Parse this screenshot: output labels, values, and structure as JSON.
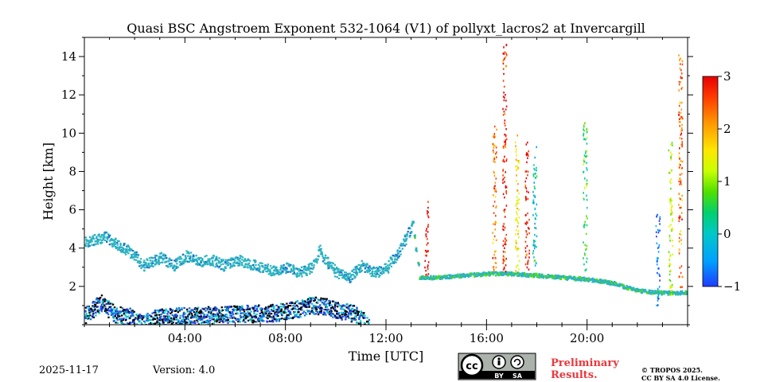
{
  "chart_data": {
    "type": "heatmap",
    "title": "Quasi BSC Angstroem Exponent 532-1064 (V1) of pollyxt_lacros2 at Invercargill",
    "xlabel": "Time [UTC]",
    "ylabel": "Height [km]",
    "xlim_hours": [
      0,
      24
    ],
    "ylim_km": [
      0,
      15
    ],
    "x_ticks": [
      {
        "hour": 4,
        "label": "04:00"
      },
      {
        "hour": 8,
        "label": "08:00"
      },
      {
        "hour": 12,
        "label": "12:00"
      },
      {
        "hour": 16,
        "label": "16:00"
      },
      {
        "hour": 20,
        "label": "20:00"
      }
    ],
    "y_ticks": [
      {
        "km": 2,
        "label": "2"
      },
      {
        "km": 4,
        "label": "4"
      },
      {
        "km": 6,
        "label": "6"
      },
      {
        "km": 8,
        "label": "8"
      },
      {
        "km": 10,
        "label": "10"
      },
      {
        "km": 12,
        "label": "12"
      },
      {
        "km": 14,
        "label": "14"
      }
    ],
    "colorbar": {
      "min": -1,
      "max": 3,
      "ticks": [
        {
          "value": 3,
          "label": "3"
        },
        {
          "value": 2,
          "label": "2"
        },
        {
          "value": 1,
          "label": "1"
        },
        {
          "value": 0,
          "label": "0"
        },
        {
          "value": -1,
          "label": "−1"
        }
      ],
      "colors": [
        "#1e3cff",
        "#00a0ff",
        "#00c8c8",
        "#00d070",
        "#50e000",
        "#c8ff00",
        "#ffe600",
        "#ff9600",
        "#ff3c00",
        "#e60000"
      ]
    },
    "layers": [
      {
        "name": "boundary-layer-aerosol",
        "color": "#2bb3c0",
        "points": [
          [
            0.0,
            4.6
          ],
          [
            0.8,
            4.9
          ],
          [
            1.5,
            4.3
          ],
          [
            2.0,
            3.9
          ],
          [
            2.3,
            3.4
          ],
          [
            2.6,
            3.6
          ],
          [
            3.0,
            3.8
          ],
          [
            3.5,
            3.4
          ],
          [
            4.0,
            3.9
          ],
          [
            4.5,
            3.6
          ],
          [
            5.0,
            3.7
          ],
          [
            5.5,
            3.4
          ],
          [
            6.0,
            3.7
          ],
          [
            6.5,
            3.5
          ],
          [
            7.0,
            3.3
          ],
          [
            7.5,
            3.1
          ],
          [
            8.0,
            3.3
          ],
          [
            8.5,
            3.0
          ],
          [
            9.0,
            3.3
          ],
          [
            9.3,
            4.2
          ],
          [
            9.6,
            3.6
          ],
          [
            10.0,
            3.0
          ],
          [
            10.5,
            2.8
          ],
          [
            11.0,
            3.4
          ],
          [
            11.5,
            3.0
          ],
          [
            12.0,
            3.3
          ],
          [
            12.5,
            4.2
          ],
          [
            13.0,
            5.5
          ],
          [
            13.3,
            2.6
          ],
          [
            14.0,
            2.6
          ],
          [
            15.0,
            2.7
          ],
          [
            16.0,
            2.8
          ],
          [
            17.0,
            2.8
          ],
          [
            18.0,
            2.7
          ],
          [
            19.0,
            2.6
          ],
          [
            20.0,
            2.5
          ],
          [
            21.0,
            2.3
          ],
          [
            22.0,
            1.9
          ],
          [
            23.0,
            1.8
          ],
          [
            24.0,
            1.8
          ]
        ]
      },
      {
        "name": "near-surface-layer",
        "color": "#1e6fd0",
        "points": [
          [
            0.0,
            1.0
          ],
          [
            0.6,
            1.6
          ],
          [
            1.2,
            1.0
          ],
          [
            1.8,
            0.9
          ],
          [
            2.3,
            0.5
          ],
          [
            2.6,
            0.8
          ],
          [
            3.3,
            0.9
          ],
          [
            7.6,
            1.1
          ],
          [
            8.4,
            1.3
          ],
          [
            9.0,
            1.5
          ],
          [
            9.6,
            1.4
          ],
          [
            10.2,
            1.2
          ],
          [
            10.8,
            1.0
          ],
          [
            11.3,
            0.3
          ]
        ]
      }
    ],
    "cirrus_profiles": [
      {
        "hour": 13.6,
        "top_km": 6.5,
        "bottom_km": 2.6,
        "dominant_value": 2.8
      },
      {
        "hour": 16.3,
        "top_km": 10.4,
        "bottom_km": 2.6,
        "dominant_value": 2.2
      },
      {
        "hour": 16.7,
        "top_km": 14.8,
        "bottom_km": 2.8,
        "dominant_value": 2.6
      },
      {
        "hour": 17.2,
        "top_km": 10.0,
        "bottom_km": 2.8,
        "dominant_value": 1.6
      },
      {
        "hour": 17.6,
        "top_km": 9.6,
        "bottom_km": 2.9,
        "dominant_value": 2.7
      },
      {
        "hour": 17.9,
        "top_km": 9.4,
        "bottom_km": 3.1,
        "dominant_value": 0.1
      },
      {
        "hour": 19.9,
        "top_km": 10.6,
        "bottom_km": 2.8,
        "dominant_value": 0.6
      },
      {
        "hour": 22.8,
        "top_km": 5.8,
        "bottom_km": 1.0,
        "dominant_value": -0.6
      },
      {
        "hour": 23.3,
        "top_km": 9.6,
        "bottom_km": 1.6,
        "dominant_value": 1.2
      },
      {
        "hour": 23.7,
        "top_km": 14.2,
        "bottom_km": 2.0,
        "dominant_value": 2.3
      }
    ]
  },
  "footer": {
    "date": "2025-11-17",
    "version": "Version: 4.0",
    "license_badge": [
      "cc",
      "BY",
      "SA"
    ],
    "preliminary_line1": "Preliminary",
    "preliminary_line2": "Results.",
    "copyright_line1": "© TROPOS 2025.",
    "copyright_line2": "CC BY SA 4.0 License."
  }
}
